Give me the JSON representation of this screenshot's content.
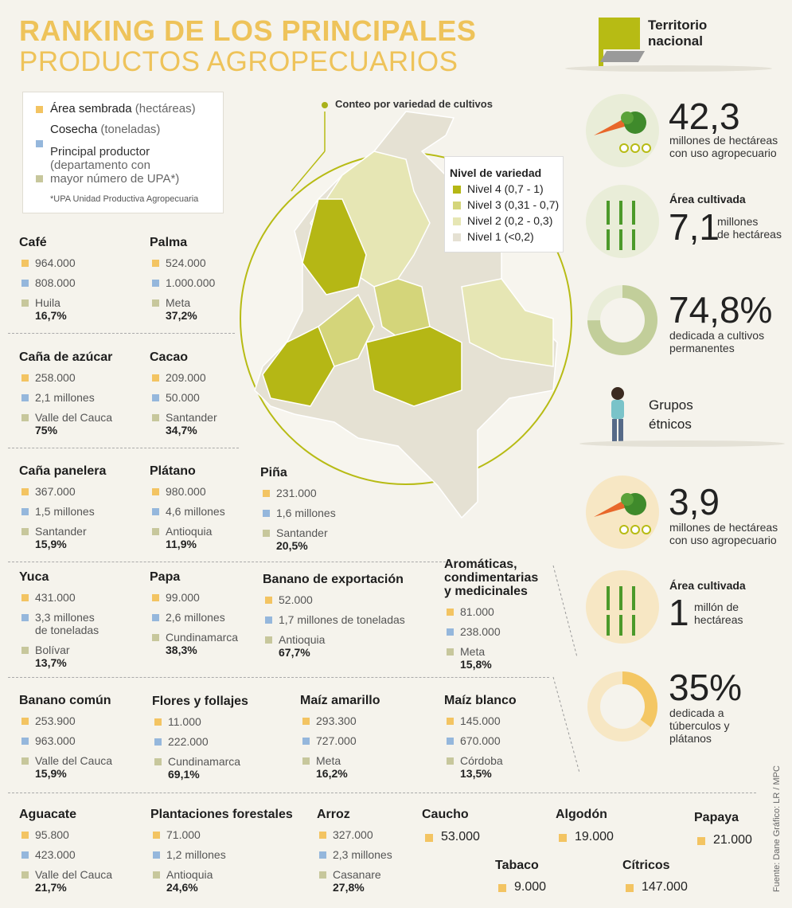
{
  "title": {
    "line1": "RANKING DE LOS PRINCIPALES",
    "line2": "PRODUCTOS AGROPECUARIOS"
  },
  "legend": {
    "area": "Área sembrada",
    "area_unit": " (hectáreas)",
    "cosecha": "Cosecha",
    "cosecha_unit": " (toneladas)",
    "productor": "Principal productor",
    "productor_detail_1": "(departamento con",
    "productor_detail_2": "mayor número de UPA*)",
    "note": "*UPA Unidad Productiva Agropecuaria"
  },
  "map": {
    "conteo_label": "Conteo por variedad de cultivos",
    "nivel_title": "Nivel de variedad",
    "niveles": [
      {
        "label": "Nivel 4 (0,7 - 1)",
        "color": "#b5b715"
      },
      {
        "label": "Nivel 3 (0,31 - 0,7)",
        "color": "#d4d57a"
      },
      {
        "label": "Nivel 2 (0,2 - 0,3)",
        "color": "#e6e6b4"
      },
      {
        "label": "Nivel 1 (<0,2)",
        "color": "#e5e1d3"
      }
    ]
  },
  "products": [
    {
      "name": "Café",
      "area": "964.000",
      "cosecha": "808.000",
      "productor": "Huila",
      "pct": "16,7%"
    },
    {
      "name": "Palma",
      "area": "524.000",
      "cosecha": "1.000.000",
      "productor": "Meta",
      "pct": "37,2%"
    },
    {
      "name": "Caña de azúcar",
      "area": "258.000",
      "cosecha": "2,1 millones",
      "productor": "Valle del Cauca",
      "pct": "75%"
    },
    {
      "name": "Cacao",
      "area": "209.000",
      "cosecha": "50.000",
      "productor": "Santander",
      "pct": "34,7%"
    },
    {
      "name": "Caña panelera",
      "area": "367.000",
      "cosecha": "1,5 millones",
      "productor": "Santander",
      "pct": "15,9%"
    },
    {
      "name": "Plátano",
      "area": "980.000",
      "cosecha": "4,6 millones",
      "productor": "Antioquia",
      "pct": "11,9%"
    },
    {
      "name": "Piña",
      "area": "231.000",
      "cosecha": "1,6 millones",
      "productor": "Santander",
      "pct": "20,5%"
    },
    {
      "name": "Yuca",
      "area": "431.000",
      "cosecha": "3,3 millones",
      "cosecha2": "de toneladas",
      "productor": "Bolívar",
      "pct": "13,7%"
    },
    {
      "name": "Papa",
      "area": "99.000",
      "cosecha": "2,6 millones",
      "productor": "Cundinamarca",
      "pct": "38,3%"
    },
    {
      "name": "Banano de exportación",
      "area": "52.000",
      "cosecha": "1,7 millones de toneladas",
      "productor": "Antioquia",
      "pct": "67,7%"
    },
    {
      "name": "Aromáticas,",
      "name2": "condimentarias",
      "name3": "y medicinales",
      "area": "81.000",
      "cosecha": "238.000",
      "productor": "Meta",
      "pct": "15,8%"
    },
    {
      "name": "Banano común",
      "area": "253.900",
      "cosecha": "963.000",
      "productor": "Valle del Cauca",
      "pct": "15,9%"
    },
    {
      "name": "Flores y follajes",
      "area": "11.000",
      "cosecha": "222.000",
      "productor": "Cundinamarca",
      "pct": "69,1%"
    },
    {
      "name": "Maíz amarillo",
      "area": "293.300",
      "cosecha": "727.000",
      "productor": "Meta",
      "pct": "16,2%"
    },
    {
      "name": "Maíz blanco",
      "area": "145.000",
      "cosecha": "670.000",
      "productor": "Córdoba",
      "pct": "13,5%"
    },
    {
      "name": "Aguacate",
      "area": "95.800",
      "cosecha": "423.000",
      "productor": "Valle del Cauca",
      "pct": "21,7%"
    },
    {
      "name": "Plantaciones forestales",
      "area": "71.000",
      "cosecha": "1,2 millones",
      "productor": "Antioquia",
      "pct": "24,6%"
    },
    {
      "name": "Arroz",
      "area": "327.000",
      "cosecha": "2,3 millones",
      "productor": "Casanare",
      "pct": "27,8%"
    },
    {
      "name": "Caucho",
      "area": "53.000"
    },
    {
      "name": "Algodón",
      "area": "19.000"
    },
    {
      "name": "Papaya",
      "area": "21.000"
    },
    {
      "name": "Tabaco",
      "area": "9.000"
    },
    {
      "name": "Cítricos",
      "area": "147.000"
    }
  ],
  "territorio": {
    "title1": "Territorio",
    "title2": "nacional",
    "uso": "42,3",
    "uso_desc1": "millones de hectáreas",
    "uso_desc2": "con uso agropecuario",
    "cultivada_label": "Área cultivada",
    "cultivada": "7,1",
    "cultivada_desc1": "millones",
    "cultivada_desc2": "de hectáreas",
    "permanentes": "74,8%",
    "permanentes_desc1": "dedicada a cultivos",
    "permanentes_desc2": "permanentes",
    "permanentes_fraction": 0.748
  },
  "etnicos": {
    "title1": "Grupos",
    "title2": "étnicos",
    "uso": "3,9",
    "uso_desc1": "millones de hectáreas",
    "uso_desc2": "con uso agropecuario",
    "cultivada_label": "Área cultivada",
    "cultivada": "1",
    "cultivada_desc1": "millón de",
    "cultivada_desc2": "hectáreas",
    "tuberculos": "35%",
    "tuberculos_desc1": "dedicada a",
    "tuberculos_desc2": "túberculos y",
    "tuberculos_desc3": "plátanos",
    "tuberculos_fraction": 0.35
  },
  "source": "Fuente: Dane  Gráfico: LR / MPC"
}
